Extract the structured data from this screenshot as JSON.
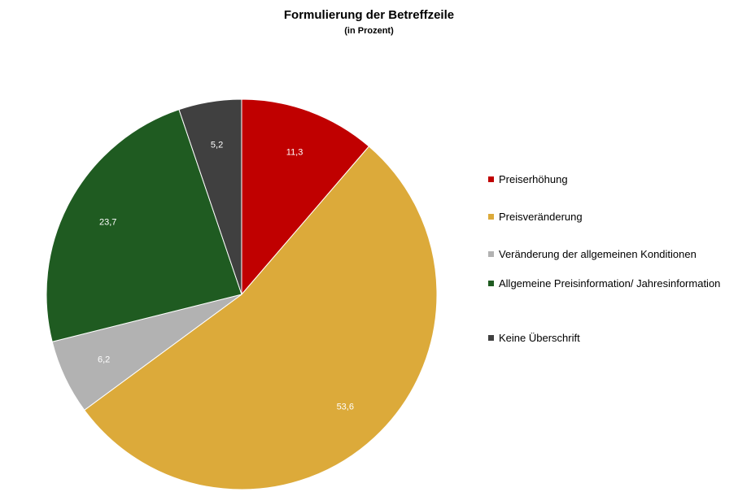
{
  "chart_data": {
    "type": "pie",
    "title": "Formulierung der Betreffzeile",
    "subtitle": "(in Prozent)",
    "legend_position": "right",
    "slices": [
      {
        "label": "Preiserhöhung",
        "value": 11.3,
        "value_label": "11,3",
        "color": "#c00000"
      },
      {
        "label": "Preisveränderung",
        "value": 53.6,
        "value_label": "53,6",
        "color": "#dcaa3a"
      },
      {
        "label": "Veränderung der allgemeinen Konditionen",
        "value": 6.2,
        "value_label": "6,2",
        "color": "#b2b2b2"
      },
      {
        "label": "Allgemeine Preisinformation/ Jahresinformation",
        "value": 23.7,
        "value_label": "23,7",
        "color": "#1f5b21"
      },
      {
        "label": "Keine Überschrift",
        "value": 5.2,
        "value_label": "5,2",
        "color": "#404040"
      }
    ]
  }
}
